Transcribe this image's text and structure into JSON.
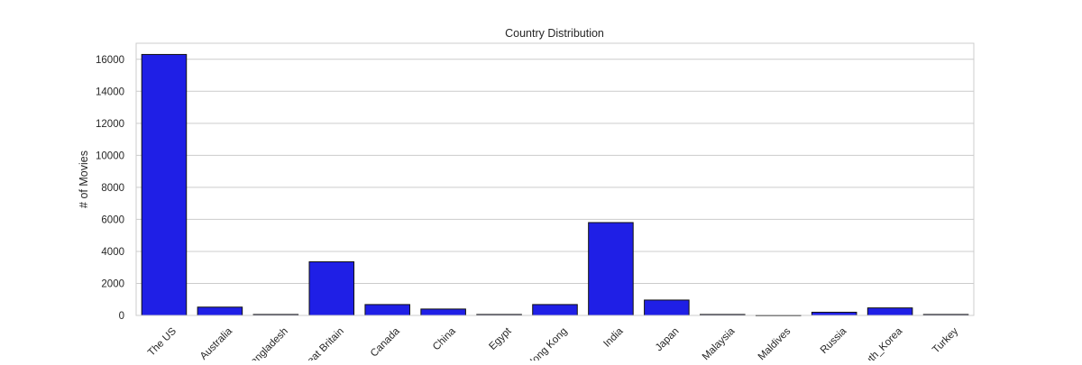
{
  "chart_data": {
    "type": "bar",
    "title": "Country Distribution",
    "xlabel": "",
    "ylabel": "# of Movies",
    "categories": [
      "The US",
      "Australia",
      "Bangladesh",
      "Great Britain",
      "Canada",
      "China",
      "Egypt",
      "Hong Kong",
      "India",
      "Japan",
      "Malaysia",
      "Maldives",
      "Russia",
      "South_Korea",
      "Turkey"
    ],
    "values": [
      16300,
      520,
      60,
      3350,
      680,
      400,
      60,
      680,
      5800,
      960,
      60,
      10,
      200,
      470,
      60
    ],
    "ylim": [
      0,
      17000
    ],
    "yticks": [
      0,
      2000,
      4000,
      6000,
      8000,
      10000,
      12000,
      14000,
      16000
    ],
    "grid": true,
    "colors": {
      "bar": "#1f1fe6",
      "bar_edge": "#111111",
      "grid": "#cccccc",
      "axes": "#cccccc"
    }
  }
}
